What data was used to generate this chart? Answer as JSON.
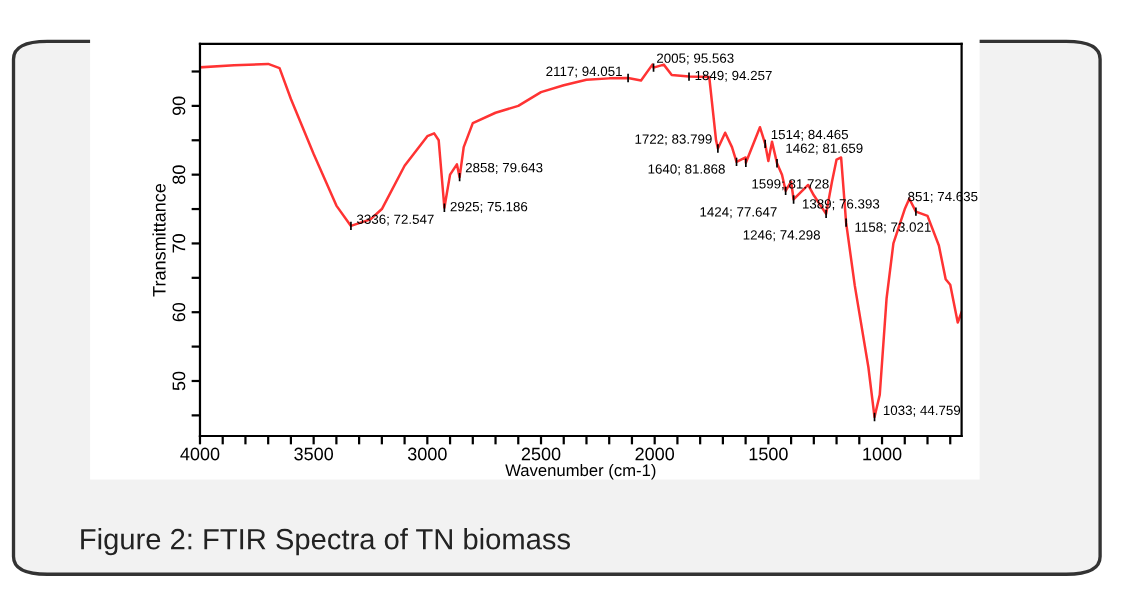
{
  "chart_data": {
    "type": "line",
    "xlabel": "Wavenumber (cm-1)",
    "ylabel": "Transmittance",
    "x": [
      4000,
      3850,
      3700,
      3650,
      3600,
      3500,
      3400,
      3336,
      3250,
      3200,
      3100,
      3000,
      2970,
      2950,
      2925,
      2900,
      2870,
      2858,
      2840,
      2800,
      2700,
      2600,
      2500,
      2400,
      2300,
      2200,
      2117,
      2060,
      2010,
      2005,
      1960,
      1925,
      1849,
      1760,
      1730,
      1722,
      1690,
      1660,
      1640,
      1600,
      1599,
      1537,
      1514,
      1500,
      1484,
      1462,
      1440,
      1424,
      1400,
      1389,
      1325,
      1300,
      1246,
      1220,
      1200,
      1180,
      1158,
      1120,
      1060,
      1033,
      1010,
      980,
      950,
      900,
      880,
      851,
      800,
      750,
      720,
      700,
      667,
      650
    ],
    "series": [
      {
        "color": "#ff3333",
        "values": [
          95.6,
          95.9,
          96.1,
          95.5,
          91.0,
          83.0,
          75.5,
          72.547,
          73.5,
          75.0,
          81.3,
          85.6,
          86.0,
          85.0,
          75.186,
          80.0,
          81.5,
          79.643,
          84.0,
          87.5,
          89.0,
          90.0,
          92.0,
          93.0,
          93.8,
          94.0,
          94.051,
          93.7,
          96.0,
          95.563,
          96.0,
          94.5,
          94.257,
          94.2,
          85.0,
          83.799,
          86.1,
          84.0,
          81.868,
          82.5,
          81.728,
          86.9,
          84.465,
          82.0,
          84.8,
          81.659,
          80.0,
          77.647,
          79.0,
          76.393,
          78.5,
          77.0,
          74.298,
          79.0,
          82.2,
          82.5,
          73.021,
          63.9,
          52.0,
          44.759,
          48.0,
          62.0,
          70.0,
          75.0,
          76.5,
          74.635,
          74.0,
          69.7,
          64.8,
          64.0,
          58.5,
          60.0
        ]
      }
    ],
    "xlim": [
      4000,
      650
    ],
    "ylim": [
      42,
      99
    ],
    "xticks": [
      4000,
      {
        "value": 3900,
        "label": null
      },
      {
        "value": 3800,
        "label": null
      },
      {
        "value": 3700,
        "label": null
      },
      {
        "value": 3600,
        "label": null
      },
      3500,
      {
        "value": 3400,
        "label": null
      },
      {
        "value": 3300,
        "label": null
      },
      {
        "value": 3200,
        "label": null
      },
      {
        "value": 3100,
        "label": null
      },
      3000,
      {
        "value": 2900,
        "label": null
      },
      {
        "value": 2800,
        "label": null
      },
      {
        "value": 2700,
        "label": null
      },
      {
        "value": 2600,
        "label": null
      },
      2500,
      {
        "value": 2400,
        "label": null
      },
      {
        "value": 2300,
        "label": null
      },
      {
        "value": 2200,
        "label": null
      },
      {
        "value": 2100,
        "label": null
      },
      2000,
      {
        "value": 1900,
        "label": null
      },
      {
        "value": 1800,
        "label": null
      },
      {
        "value": 1700,
        "label": null
      },
      {
        "value": 1600,
        "label": null
      },
      1500,
      {
        "value": 1400,
        "label": null
      },
      {
        "value": 1300,
        "label": null
      },
      {
        "value": 1200,
        "label": null
      },
      {
        "value": 1100,
        "label": null
      },
      1000,
      {
        "value": 900,
        "label": null
      },
      {
        "value": 800,
        "label": null
      },
      {
        "value": 700,
        "label": null
      }
    ],
    "yticks": [
      {
        "value": 45,
        "label": null
      },
      50,
      {
        "value": 55,
        "label": null
      },
      60,
      {
        "value": 65,
        "label": null
      },
      70,
      {
        "value": 75,
        "label": null
      },
      80,
      {
        "value": 85,
        "label": null
      },
      90,
      {
        "value": 95,
        "label": null
      }
    ],
    "grid": false,
    "legend": false,
    "annotations": [
      {
        "text": "3336; 72.547",
        "x": 3336,
        "y": 72.547
      },
      {
        "text": "2925; 75.186",
        "x": 2925,
        "y": 75.186
      },
      {
        "text": "2858; 79.643",
        "x": 2858,
        "y": 79.643
      },
      {
        "text": "2117; 94.051",
        "x": 2117,
        "y": 94.051
      },
      {
        "text": "2005; 95.563",
        "x": 2005,
        "y": 95.563
      },
      {
        "text": "1849; 94.257",
        "x": 1849,
        "y": 94.257
      },
      {
        "text": "1722; 83.799",
        "x": 1722,
        "y": 83.799
      },
      {
        "text": "1640; 81.868",
        "x": 1640,
        "y": 81.868
      },
      {
        "text": "1599; 81.728",
        "x": 1599,
        "y": 81.728
      },
      {
        "text": "1514; 84.465",
        "x": 1514,
        "y": 84.465
      },
      {
        "text": "1462; 81.659",
        "x": 1462,
        "y": 81.659
      },
      {
        "text": "1424; 77.647",
        "x": 1424,
        "y": 77.647
      },
      {
        "text": "1389; 76.393",
        "x": 1389,
        "y": 76.393
      },
      {
        "text": "1246; 74.298",
        "x": 1246,
        "y": 74.298
      },
      {
        "text": "1158; 73.021",
        "x": 1158,
        "y": 73.021
      },
      {
        "text": "1033; 44.759",
        "x": 1033,
        "y": 44.759
      },
      {
        "text": "851; 74.635",
        "x": 851,
        "y": 74.635
      },
      "Figure 2: FTIR Spectra of TN biomass"
    ]
  }
}
